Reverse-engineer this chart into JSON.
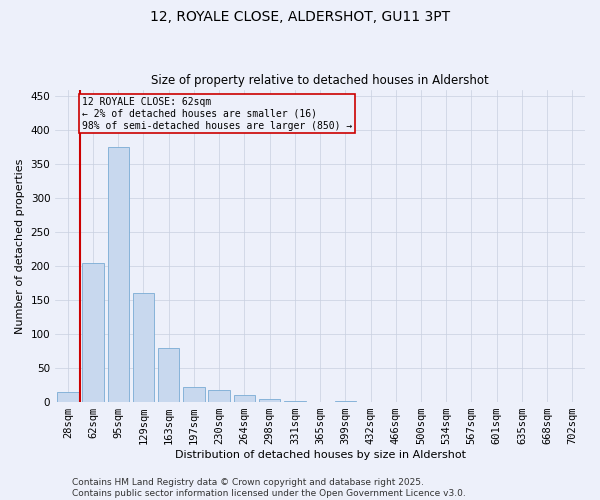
{
  "title_line1": "12, ROYALE CLOSE, ALDERSHOT, GU11 3PT",
  "title_line2": "Size of property relative to detached houses in Aldershot",
  "xlabel": "Distribution of detached houses by size in Aldershot",
  "ylabel": "Number of detached properties",
  "categories": [
    "28sqm",
    "62sqm",
    "95sqm",
    "129sqm",
    "163sqm",
    "197sqm",
    "230sqm",
    "264sqm",
    "298sqm",
    "331sqm",
    "365sqm",
    "399sqm",
    "432sqm",
    "466sqm",
    "500sqm",
    "534sqm",
    "567sqm",
    "601sqm",
    "635sqm",
    "668sqm",
    "702sqm"
  ],
  "values": [
    15,
    205,
    375,
    160,
    80,
    22,
    18,
    10,
    5,
    1,
    0,
    1,
    0,
    0,
    0,
    0,
    0,
    0,
    0,
    0,
    0
  ],
  "bar_color": "#c8d8ee",
  "bar_edge_color": "#7aacd4",
  "highlight_bar_index": 1,
  "highlight_color": "#cc0000",
  "annotation_text": "12 ROYALE CLOSE: 62sqm\n← 2% of detached houses are smaller (16)\n98% of semi-detached houses are larger (850) →",
  "annotation_box_color": "#cc0000",
  "ylim": [
    0,
    460
  ],
  "yticks": [
    0,
    50,
    100,
    150,
    200,
    250,
    300,
    350,
    400,
    450
  ],
  "grid_color": "#c8d0e0",
  "bg_color": "#edf0fa",
  "footer_text": "Contains HM Land Registry data © Crown copyright and database right 2025.\nContains public sector information licensed under the Open Government Licence v3.0.",
  "title_fontsize": 10,
  "subtitle_fontsize": 8.5,
  "axis_label_fontsize": 8,
  "tick_fontsize": 7.5,
  "annotation_fontsize": 7,
  "footer_fontsize": 6.5
}
